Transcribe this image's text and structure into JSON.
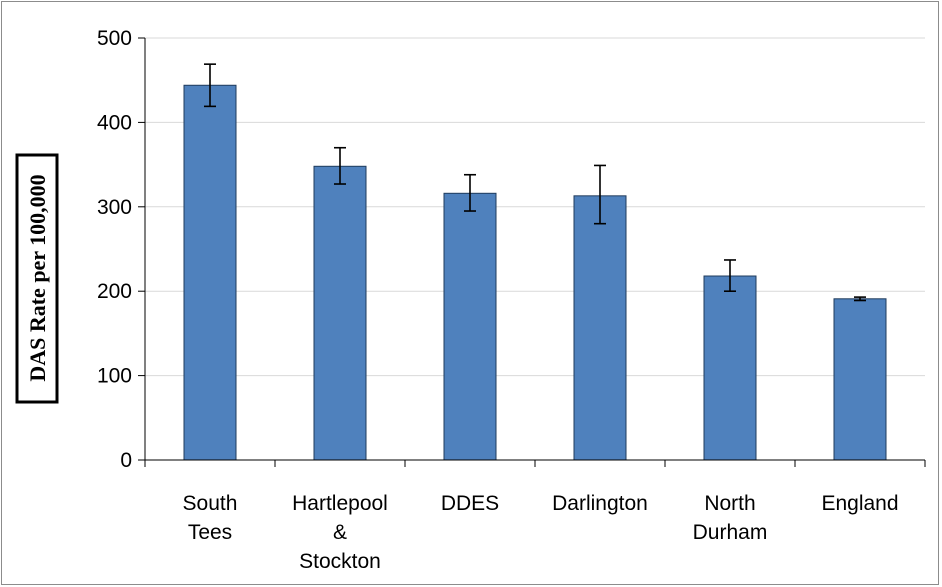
{
  "chart_data": {
    "type": "bar",
    "title": "",
    "xlabel": "",
    "ylabel": "DAS Rate per 100,000",
    "ylim": [
      0,
      500
    ],
    "yticks": [
      0,
      100,
      200,
      300,
      400,
      500
    ],
    "grid": true,
    "legend": "none",
    "categories": [
      [
        "South",
        "Tees"
      ],
      [
        "Hartlepool",
        "&",
        "Stockton"
      ],
      [
        "DDES"
      ],
      [
        "Darlington"
      ],
      [
        "North",
        "Durham"
      ],
      [
        "England"
      ]
    ],
    "values": [
      444,
      348,
      316,
      313,
      218,
      191
    ],
    "error_low": [
      419,
      327,
      295,
      280,
      200,
      189
    ],
    "error_high": [
      469,
      370,
      338,
      349,
      237,
      193
    ],
    "colors": {
      "bar": "#4f81bd",
      "bar_edge": "#1f3b5c",
      "grid": "#d9d9d9",
      "axis": "#000000"
    }
  }
}
